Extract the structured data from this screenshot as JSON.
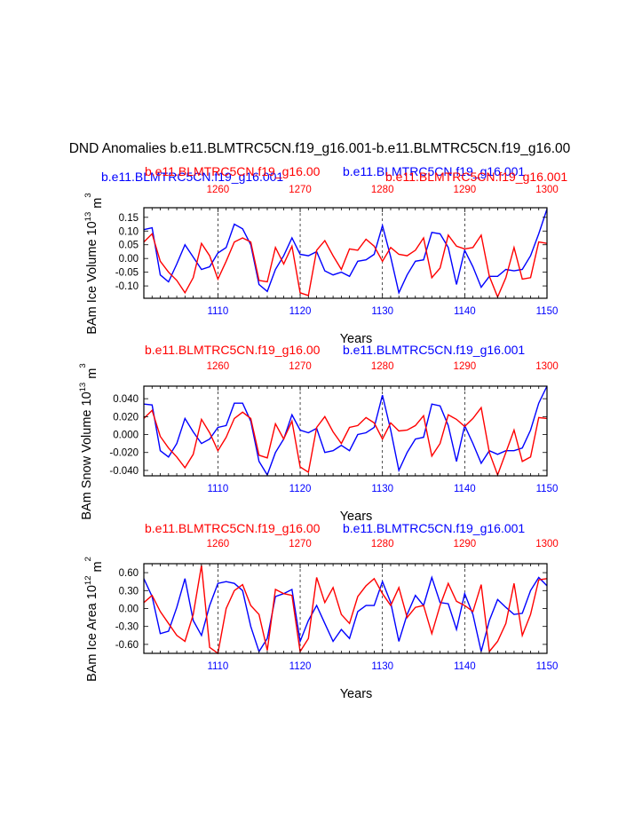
{
  "main_title": "DND Anomalies b.e11.BLMTRC5CN.f19_g16.001-b.e11.BLMTRC5CN.f19_g16.00",
  "colors": {
    "series_a": "#0000ff",
    "series_b": "#ff0000",
    "axis": "#000000"
  },
  "legend": {
    "panel1_blue_left": "b.e11.BLMTRC5CN.f19_g16.001",
    "panel1_red_left": "b.e11.BLMTRC5CN.f19_g16.00",
    "panel1_blue_right": "b.e11.BLMTRC5CN.f19_g16.001",
    "panel1_red_right": "b.e11.BLMTRC5CN.f19_g16.001",
    "panel2_red": "b.e11.BLMTRC5CN.f19_g16.00",
    "panel2_blue": "b.e11.BLMTRC5CN.f19_g16.001",
    "panel3_red": "b.e11.BLMTRC5CN.f19_g16.00",
    "panel3_blue": "b.e11.BLMTRC5CN.f19_g16.001"
  },
  "chart_data": [
    {
      "type": "line",
      "ylabel": "BAm Ice Volume 10",
      "yexp": "13",
      "yunit": " m",
      "yunit_exp": "3",
      "xlabel": "Years",
      "bottom_xlim": [
        1101,
        1150
      ],
      "bottom_ticks": [
        1110,
        1120,
        1130,
        1140,
        1150
      ],
      "top_ticks": [
        1260,
        1270,
        1280,
        1290,
        1300
      ],
      "ylim": [
        -0.145,
        0.185
      ],
      "yticks": [
        0.15,
        0.1,
        0.05,
        0.0,
        -0.05,
        -0.1
      ],
      "ytick_labels": [
        "0.15",
        "0.10",
        "0.05",
        "0.00",
        "-0.05",
        "-0.10"
      ],
      "series": [
        {
          "name": "b.e11.BLMTRC5CN.f19_g16.001",
          "color": "blue",
          "values": [
            0.105,
            0.112,
            -0.06,
            -0.085,
            -0.02,
            0.05,
            0.005,
            -0.04,
            -0.03,
            0.02,
            0.04,
            0.125,
            0.108,
            0.05,
            -0.095,
            -0.12,
            -0.04,
            0.01,
            0.075,
            0.015,
            0.01,
            0.025,
            -0.045,
            -0.06,
            -0.05,
            -0.065,
            -0.01,
            -0.005,
            0.015,
            0.12,
            0.005,
            -0.125,
            -0.06,
            -0.01,
            -0.005,
            0.095,
            0.09,
            0.04,
            -0.095,
            0.03,
            -0.03,
            -0.105,
            -0.065,
            -0.065,
            -0.04,
            -0.045,
            -0.04,
            0.01,
            0.09,
            0.18
          ]
        },
        {
          "name": "b.e11.BLMTRC5CN.f19_g16.00",
          "color": "red",
          "values": [
            0.06,
            0.09,
            -0.01,
            -0.05,
            -0.08,
            -0.125,
            -0.07,
            0.055,
            0.01,
            -0.075,
            -0.01,
            0.06,
            0.075,
            0.06,
            -0.08,
            -0.085,
            0.04,
            -0.02,
            0.045,
            -0.125,
            -0.135,
            0.03,
            0.065,
            0.01,
            -0.04,
            0.035,
            0.03,
            0.07,
            0.045,
            -0.01,
            0.04,
            0.015,
            0.01,
            0.03,
            0.075,
            -0.07,
            -0.035,
            0.085,
            0.045,
            0.035,
            0.04,
            0.085,
            -0.065,
            -0.14,
            -0.07,
            0.04,
            -0.075,
            -0.07,
            0.06,
            0.055
          ]
        }
      ]
    },
    {
      "type": "line",
      "ylabel": "BAm Snow Volume 10",
      "yexp": "13",
      "yunit": " m",
      "yunit_exp": "3",
      "xlabel": "Years",
      "bottom_xlim": [
        1101,
        1150
      ],
      "bottom_ticks": [
        1110,
        1120,
        1130,
        1140,
        1150
      ],
      "top_ticks": [
        1260,
        1270,
        1280,
        1290,
        1300
      ],
      "ylim": [
        -0.046,
        0.054
      ],
      "yticks": [
        0.04,
        0.02,
        0.0,
        -0.02,
        -0.04
      ],
      "ytick_labels": [
        "0.040",
        "0.020",
        "0.000",
        "-0.020",
        "-0.040"
      ],
      "series": [
        {
          "name": "b.e11.BLMTRC5CN.f19_g16.001",
          "color": "blue",
          "values": [
            0.034,
            0.033,
            -0.018,
            -0.025,
            -0.01,
            0.018,
            0.003,
            -0.01,
            -0.005,
            0.008,
            0.01,
            0.035,
            0.035,
            0.015,
            -0.03,
            -0.045,
            -0.02,
            -0.005,
            0.022,
            0.005,
            0.002,
            0.007,
            -0.02,
            -0.018,
            -0.012,
            -0.018,
            0.0,
            0.002,
            0.008,
            0.044,
            0.005,
            -0.04,
            -0.02,
            -0.005,
            -0.003,
            0.034,
            0.032,
            0.01,
            -0.03,
            0.01,
            -0.01,
            -0.032,
            -0.018,
            -0.022,
            -0.018,
            -0.018,
            -0.015,
            0.005,
            0.035,
            0.054
          ]
        },
        {
          "name": "b.e11.BLMTRC5CN.f19_g16.00",
          "color": "red",
          "values": [
            0.018,
            0.027,
            -0.002,
            -0.015,
            -0.025,
            -0.037,
            -0.022,
            0.017,
            0.002,
            -0.018,
            -0.003,
            0.018,
            0.025,
            0.018,
            -0.023,
            -0.026,
            0.012,
            -0.005,
            0.015,
            -0.036,
            -0.042,
            0.008,
            0.02,
            0.003,
            -0.01,
            0.008,
            0.01,
            0.019,
            0.013,
            -0.005,
            0.013,
            0.004,
            0.005,
            0.01,
            0.021,
            -0.024,
            -0.01,
            0.022,
            0.017,
            0.009,
            0.018,
            0.03,
            -0.02,
            -0.045,
            -0.02,
            0.005,
            -0.03,
            -0.025,
            0.019,
            0.018
          ]
        }
      ]
    },
    {
      "type": "line",
      "ylabel": "BAm Ice Area 10",
      "yexp": "12",
      "yunit": " m",
      "yunit_exp": "2",
      "xlabel": "Years",
      "bottom_xlim": [
        1101,
        1150
      ],
      "bottom_ticks": [
        1110,
        1120,
        1130,
        1140,
        1150
      ],
      "top_ticks": [
        1260,
        1270,
        1280,
        1290,
        1300
      ],
      "ylim": [
        -0.75,
        0.75
      ],
      "yticks": [
        0.6,
        0.3,
        0.0,
        -0.3,
        -0.6
      ],
      "ytick_labels": [
        "0.60",
        "0.30",
        "0.00",
        "-0.30",
        "-0.60"
      ],
      "series": [
        {
          "name": "b.e11.BLMTRC5CN.f19_g16.001",
          "color": "blue",
          "values": [
            0.5,
            0.2,
            -0.42,
            -0.38,
            0.02,
            0.5,
            -0.2,
            -0.45,
            0.05,
            0.42,
            0.45,
            0.42,
            0.3,
            -0.3,
            -0.72,
            -0.5,
            0.2,
            0.25,
            0.32,
            -0.55,
            -0.2,
            0.05,
            -0.25,
            -0.55,
            -0.35,
            -0.5,
            -0.05,
            0.05,
            0.05,
            0.45,
            0.1,
            -0.55,
            -0.1,
            0.22,
            0.05,
            0.52,
            0.1,
            0.08,
            -0.35,
            0.25,
            -0.1,
            -0.72,
            -0.2,
            0.15,
            0.02,
            -0.1,
            -0.08,
            0.3,
            0.52,
            0.38
          ]
        },
        {
          "name": "b.e11.BLMTRC5CN.f19_g16.00",
          "color": "red",
          "values": [
            0.1,
            0.22,
            -0.05,
            -0.25,
            -0.45,
            -0.55,
            -0.1,
            0.72,
            -0.65,
            -0.75,
            0.0,
            0.3,
            0.4,
            0.05,
            -0.1,
            -0.7,
            0.32,
            0.25,
            0.22,
            -0.72,
            -0.5,
            0.52,
            0.1,
            0.35,
            -0.1,
            -0.25,
            0.2,
            0.38,
            0.5,
            0.25,
            0.05,
            0.35,
            -0.15,
            0.02,
            0.05,
            -0.42,
            0.05,
            0.42,
            0.12,
            0.05,
            -0.05,
            0.4,
            -0.72,
            -0.55,
            -0.25,
            0.42,
            -0.45,
            -0.1,
            0.48,
            0.5
          ]
        }
      ]
    }
  ]
}
